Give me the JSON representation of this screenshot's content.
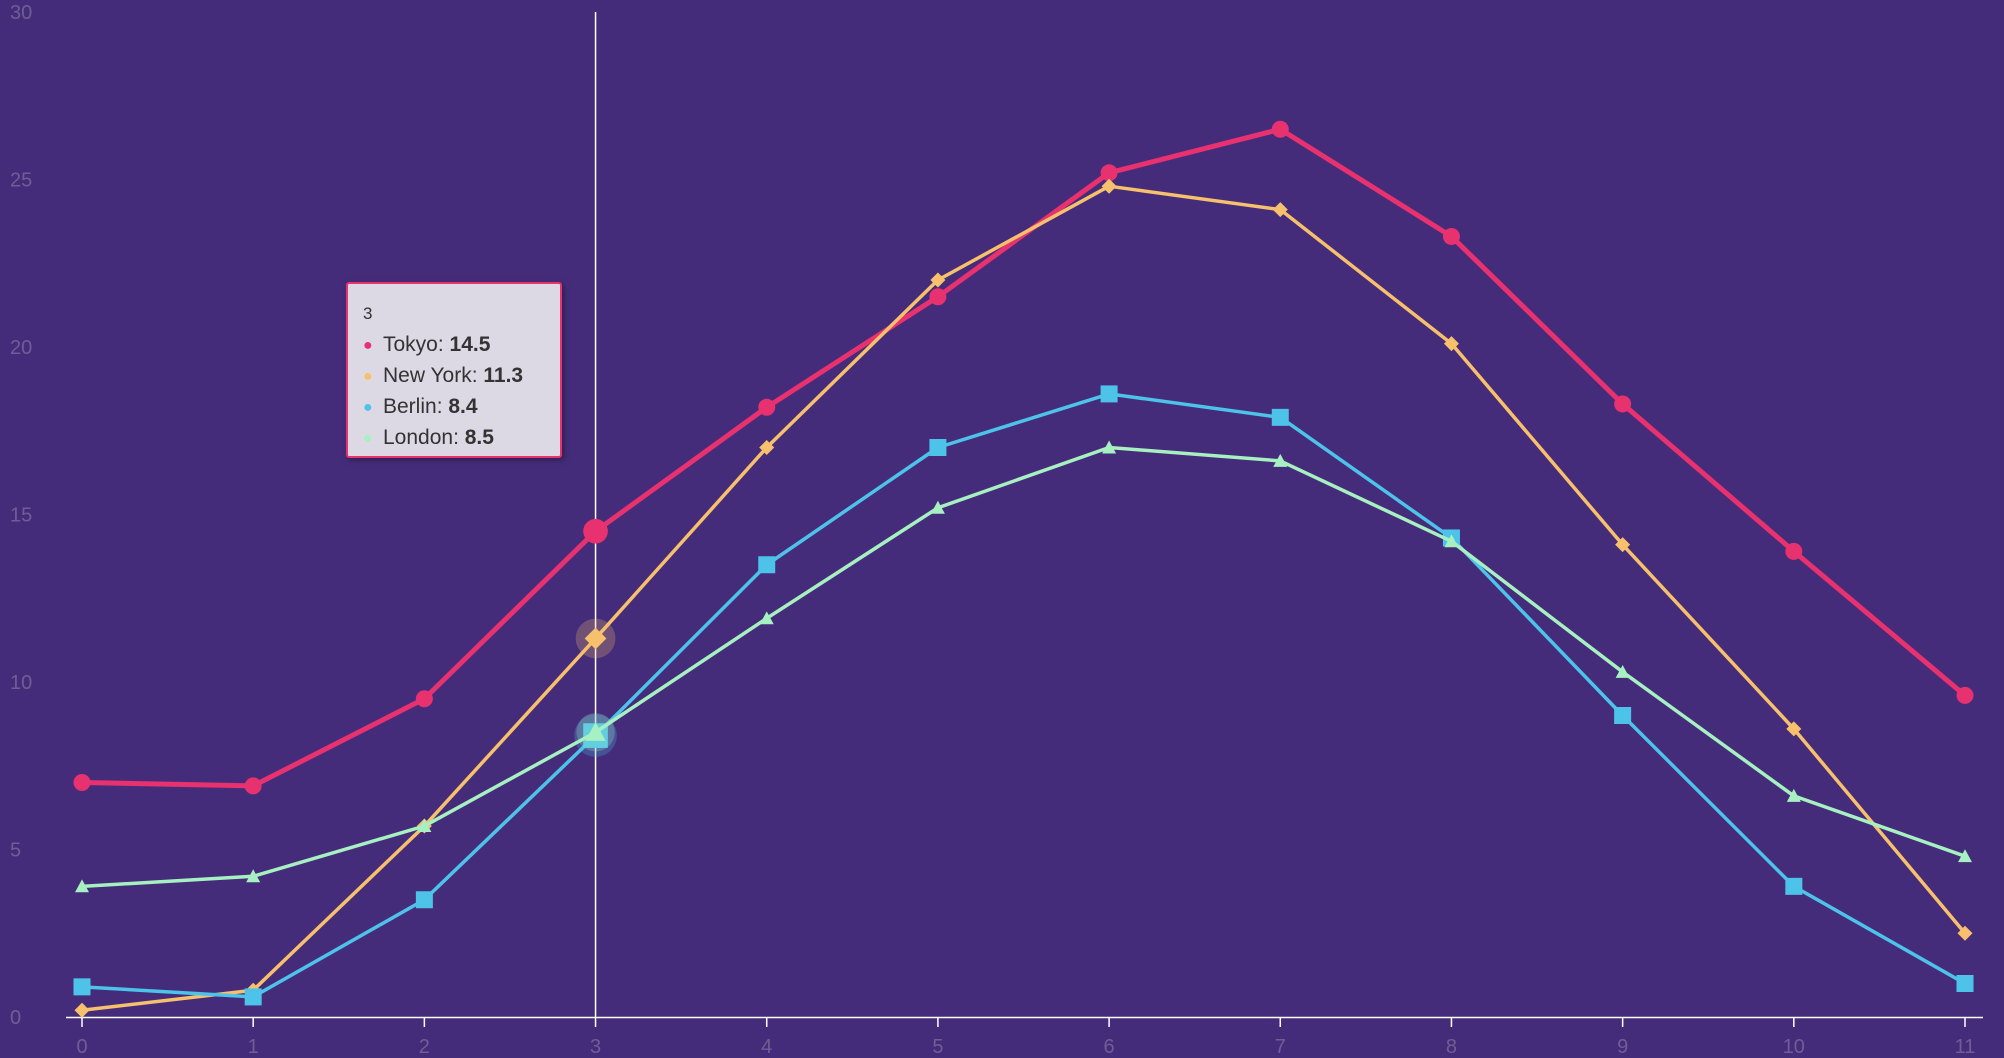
{
  "chart_data": {
    "type": "line",
    "x": [
      0,
      1,
      2,
      3,
      4,
      5,
      6,
      7,
      8,
      9,
      10,
      11
    ],
    "xlim": [
      0,
      11
    ],
    "ylim": [
      0,
      30
    ],
    "y_ticks": [
      0,
      5,
      10,
      15,
      20,
      25,
      30
    ],
    "grid": false,
    "series": [
      {
        "name": "Tokyo",
        "color": "#e8316f",
        "marker": "circle",
        "values": [
          7.0,
          6.9,
          9.5,
          14.5,
          18.2,
          21.5,
          25.2,
          26.5,
          23.3,
          18.3,
          13.9,
          9.6
        ]
      },
      {
        "name": "New York",
        "color": "#f7c06c",
        "marker": "diamond",
        "values": [
          0.2,
          0.8,
          5.7,
          11.3,
          17.0,
          22.0,
          24.8,
          24.1,
          20.1,
          14.1,
          8.6,
          2.5
        ]
      },
      {
        "name": "Berlin",
        "color": "#4dc3ea",
        "marker": "square",
        "values": [
          0.9,
          0.6,
          3.5,
          8.4,
          13.5,
          17.0,
          18.6,
          17.9,
          14.3,
          9.0,
          3.9,
          1.0
        ]
      },
      {
        "name": "London",
        "color": "#a6f0c2",
        "marker": "triangle",
        "values": [
          3.9,
          4.2,
          5.7,
          8.5,
          11.9,
          15.2,
          17.0,
          16.6,
          14.2,
          10.3,
          6.6,
          4.8
        ]
      }
    ],
    "tooltip": {
      "header": "3",
      "rows": [
        {
          "label": "Tokyo: ",
          "value": "14.5",
          "color": "#e8316f"
        },
        {
          "label": "New York: ",
          "value": "11.3",
          "color": "#f7c06c"
        },
        {
          "label": "Berlin: ",
          "value": "8.4",
          "color": "#4dc3ea"
        },
        {
          "label": "London: ",
          "value": "8.5",
          "color": "#a6f0c2"
        }
      ]
    },
    "hover_index": 3,
    "colors": {
      "background": "#452c7a",
      "axis": "#ffffff",
      "tick_label": "#6f5e95",
      "crosshair": "#ffffff"
    }
  }
}
